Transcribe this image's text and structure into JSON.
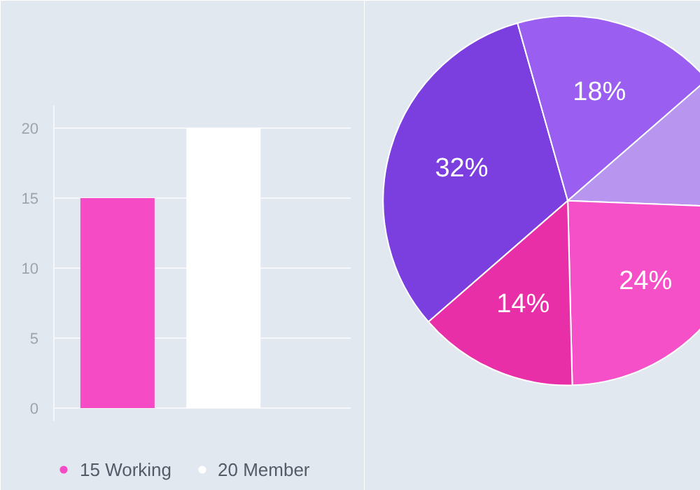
{
  "chart_data": [
    {
      "type": "bar",
      "categories": [
        null,
        null
      ],
      "series": [
        {
          "name": "15 Working",
          "color": "#f54bc5",
          "values": [
            15,
            null
          ]
        },
        {
          "name": "20 Member",
          "color": "#ffffff",
          "values": [
            null,
            20
          ]
        }
      ],
      "ylim": [
        -0.9,
        21.6
      ],
      "yticks": [
        0,
        5,
        10,
        15,
        20
      ],
      "grid": "y",
      "legend": "bottom"
    },
    {
      "type": "pie",
      "categories": [
        null,
        null,
        null,
        null,
        null
      ],
      "values": [
        32,
        18,
        12,
        24,
        14
      ],
      "colors": [
        "#7b3fe0",
        "#9a5ff0",
        "#b896f0",
        "#f550c8",
        "#e82fa8"
      ],
      "value_labels": [
        "32%",
        "18%",
        null,
        "24%",
        "14%"
      ]
    }
  ]
}
